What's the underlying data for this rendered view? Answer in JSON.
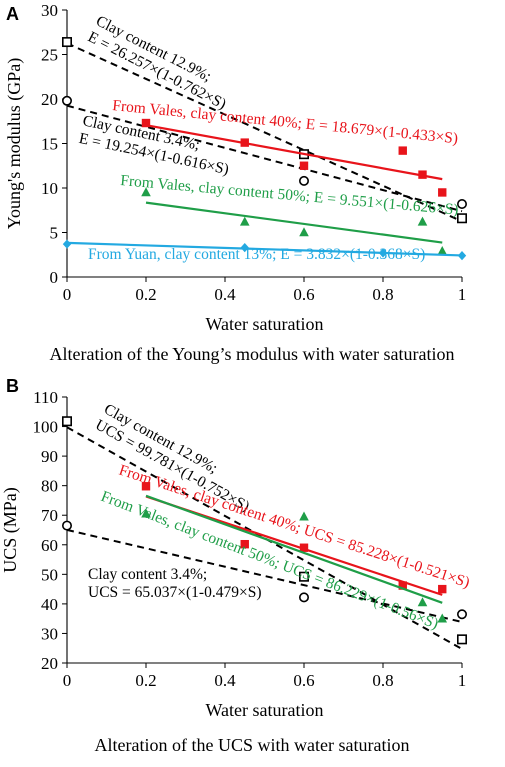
{
  "colors": {
    "black": "#000000",
    "red": "#e8141b",
    "green": "#1f9e48",
    "blue": "#23a9e1"
  },
  "chart_data": [
    {
      "type": "scatter",
      "panel_label": "A",
      "xlabel": "Water saturation",
      "ylabel": "Young's modulus (GPa)",
      "caption": "Alteration of the Young’s modulus with water saturation",
      "xlim": [
        0,
        1
      ],
      "ylim": [
        0,
        30
      ],
      "x_ticks": [
        0,
        0.2,
        0.4,
        0.6,
        0.8,
        1
      ],
      "x_tick_labels": [
        "0",
        "0.2",
        "0.4",
        "0.6",
        "0.8",
        "1"
      ],
      "y_ticks": [
        0,
        5,
        10,
        15,
        20,
        25,
        30
      ],
      "y_tick_labels": [
        "0",
        "5",
        "10",
        "15",
        "20",
        "25",
        "30"
      ],
      "grid": false,
      "series": [
        {
          "color": "#000000",
          "marker": "square-open",
          "points": [
            [
              0,
              26.4
            ],
            [
              0.6,
              13.8
            ],
            [
              1,
              6.6
            ]
          ],
          "fit": {
            "type": "dashed",
            "E0": 26.257,
            "k": 0.762,
            "x_range": [
              0,
              1
            ]
          },
          "label": {
            "lines": [
              "Clay content 12.9%;",
              "E = 26.257×(1-0.762×S)"
            ],
            "angle": 27
          }
        },
        {
          "color": "#000000",
          "marker": "circle-open",
          "points": [
            [
              0,
              19.8
            ],
            [
              0.6,
              10.8
            ],
            [
              1,
              8.2
            ]
          ],
          "fit": {
            "type": "dashed",
            "E0": 19.254,
            "k": 0.616,
            "x_range": [
              0,
              1
            ]
          },
          "label": {
            "lines": [
              "Clay content 3.4%;",
              "E = 19.254×(1-0.616×S)"
            ],
            "angle": 12
          }
        },
        {
          "color": "#e8141b",
          "marker": "square",
          "points": [
            [
              0.2,
              17.3
            ],
            [
              0.45,
              15.1
            ],
            [
              0.6,
              12.5
            ],
            [
              0.85,
              14.2
            ],
            [
              0.9,
              11.5
            ],
            [
              0.95,
              9.5
            ]
          ],
          "fit": {
            "type": "solid",
            "E0": 18.679,
            "k": 0.433,
            "x_range": [
              0.2,
              0.95
            ]
          },
          "label": {
            "lines": [
              "From Vales, clay content 40%; E = 18.679×(1-0.433×S)"
            ],
            "angle": 5.5
          }
        },
        {
          "color": "#1f9e48",
          "marker": "triangle",
          "points": [
            [
              0.2,
              9.5
            ],
            [
              0.45,
              6.2
            ],
            [
              0.6,
              5.0
            ],
            [
              0.9,
              6.2
            ],
            [
              0.95,
              2.9
            ]
          ],
          "fit": {
            "type": "solid",
            "E0": 9.551,
            "k": 0.626,
            "x_range": [
              0.2,
              0.95
            ]
          },
          "label": {
            "lines": [
              "From Vales, clay content 50%; E = 9.551×(1-0.626×S)"
            ],
            "angle": 5
          }
        },
        {
          "color": "#23a9e1",
          "marker": "diamond",
          "points": [
            [
              0,
              3.7
            ],
            [
              0.45,
              3.3
            ],
            [
              0.8,
              2.7
            ],
            [
              1,
              2.4
            ]
          ],
          "fit": {
            "type": "solid",
            "E0": 3.832,
            "k": 0.368,
            "x_range": [
              0,
              1
            ]
          },
          "label": {
            "lines": [
              "From Yuan, clay content 13%; E = 3.832×(1-0.368×S)"
            ],
            "angle": 0
          }
        }
      ]
    },
    {
      "type": "scatter",
      "panel_label": "B",
      "xlabel": "Water saturation",
      "ylabel": "UCS (MPa)",
      "caption": "Alteration of the UCS with water saturation",
      "xlim": [
        0,
        1
      ],
      "ylim": [
        20,
        110
      ],
      "x_ticks": [
        0,
        0.2,
        0.4,
        0.6,
        0.8,
        1
      ],
      "x_tick_labels": [
        "0",
        "0.2",
        "0.4",
        "0.6",
        "0.8",
        "1"
      ],
      "y_ticks": [
        20,
        30,
        40,
        50,
        60,
        70,
        80,
        90,
        100,
        110
      ],
      "y_tick_labels": [
        "20",
        "30",
        "40",
        "50",
        "60",
        "70",
        "80",
        "90",
        "100",
        "110"
      ],
      "grid": false,
      "series": [
        {
          "color": "#000000",
          "marker": "square-open",
          "points": [
            [
              0,
              101.8
            ],
            [
              0.6,
              49.2
            ],
            [
              1,
              28.0
            ]
          ],
          "fit": {
            "type": "dashed",
            "E0": 99.781,
            "k": 0.752,
            "x_range": [
              0,
              1
            ]
          },
          "label": {
            "lines": [
              "Clay content 12.9%;",
              "UCS = 99.781×(1-0.752×S)"
            ],
            "angle": 29
          }
        },
        {
          "color": "#000000",
          "marker": "circle-open",
          "points": [
            [
              0,
              66.5
            ],
            [
              0.6,
              42.2
            ],
            [
              1,
              36.5
            ]
          ],
          "fit": {
            "type": "dashed",
            "E0": 65.037,
            "k": 0.479,
            "x_range": [
              0,
              1
            ]
          },
          "label": {
            "lines": [
              "Clay content 3.4%;",
              "UCS = 65.037×(1-0.479×S)"
            ],
            "angle": 0
          }
        },
        {
          "color": "#e8141b",
          "marker": "square",
          "points": [
            [
              0.2,
              79.8
            ],
            [
              0.45,
              60.2
            ],
            [
              0.6,
              59.0
            ],
            [
              0.85,
              46.2
            ],
            [
              0.95,
              45.0
            ]
          ],
          "fit": {
            "type": "solid",
            "E0": 85.228,
            "k": 0.521,
            "x_range": [
              0.2,
              0.95
            ]
          },
          "label": {
            "lines": [
              "From Vales, clay content 40%; UCS = 85.228×(1-0.521×S)"
            ],
            "angle": 18
          }
        },
        {
          "color": "#1f9e48",
          "marker": "triangle",
          "points": [
            [
              0.2,
              70.5
            ],
            [
              0.6,
              69.5
            ],
            [
              0.9,
              40.5
            ],
            [
              0.95,
              35.0
            ]
          ],
          "fit": {
            "type": "solid",
            "E0": 86.229,
            "k": 0.56,
            "x_range": [
              0.2,
              0.95
            ]
          },
          "label": {
            "lines": [
              "From Vales, clay content 50%; UCS = 86.229×(1-0.56×S)"
            ],
            "angle": 21
          }
        }
      ]
    }
  ]
}
